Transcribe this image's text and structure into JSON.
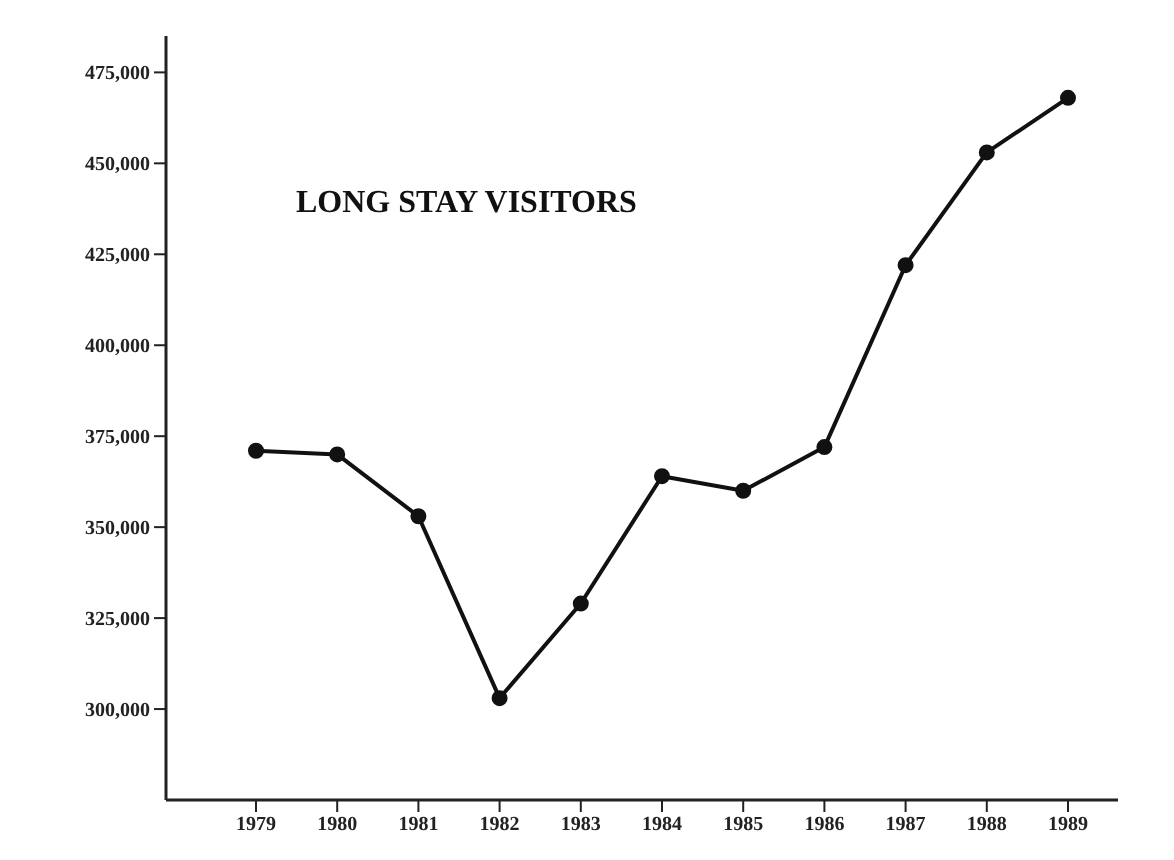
{
  "chart_data": {
    "type": "line",
    "title": "LONG STAY VISITORS",
    "categories": [
      "1979",
      "1980",
      "1981",
      "1982",
      "1983",
      "1984",
      "1985",
      "1986",
      "1987",
      "1988",
      "1989"
    ],
    "series": [
      {
        "color": "#111111",
        "values": [
          371000,
          370000,
          353000,
          303000,
          329000,
          364000,
          360000,
          372000,
          422000,
          453000,
          468000
        ]
      }
    ],
    "ylim": [
      275000,
      485000
    ],
    "yticks": [
      {
        "value": 300000,
        "label": "300,000"
      },
      {
        "value": 325000,
        "label": "325,000"
      },
      {
        "value": 350000,
        "label": "350,000"
      },
      {
        "value": 375000,
        "label": "375,000"
      },
      {
        "value": 400000,
        "label": "400,000"
      },
      {
        "value": 425000,
        "label": "425,000"
      },
      {
        "value": 450000,
        "label": "450,000"
      },
      {
        "value": 475000,
        "label": "475,000"
      }
    ],
    "grid": false,
    "legend": false,
    "marker": "circle",
    "line_style": "solid"
  }
}
